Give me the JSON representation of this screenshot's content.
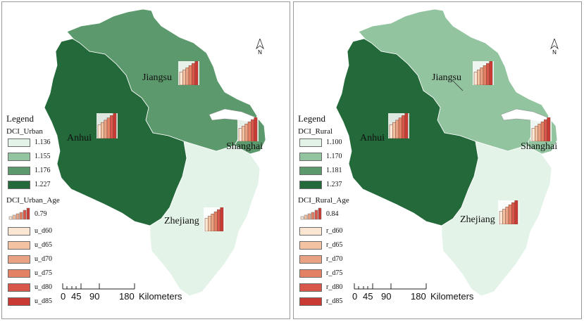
{
  "colors": {
    "class1": "#e3f3e8",
    "class2": "#92c4a0",
    "class3": "#5c9a6d",
    "class4": "#23693a",
    "water": "#ffffff",
    "ramp": [
      "#fbe5d3",
      "#f3c2a2",
      "#eaa284",
      "#e38165",
      "#d9574a",
      "#c93a34"
    ]
  },
  "panels": [
    {
      "id": "urban",
      "legend_title": "Legend",
      "dci_header": "DCI_Urban",
      "dci_classes": [
        "1.136",
        "1.155",
        "1.176",
        "1.227"
      ],
      "age_header": "DCI_Urban_Age",
      "age_symbol_value": "0.79",
      "age_classes": [
        "u_d60",
        "u_d65",
        "u_d70",
        "u_d75",
        "u_d80",
        "u_d85"
      ],
      "provinces": [
        {
          "name": "Anhui",
          "class": 4
        },
        {
          "name": "Jiangsu",
          "class": 3
        },
        {
          "name": "Shanghai",
          "class": 3
        },
        {
          "name": "Zhejiang",
          "class": 1
        }
      ],
      "north": "N",
      "scale": {
        "ticks": [
          "0",
          "45",
          "90",
          "180"
        ],
        "unit": "Kilometers"
      }
    },
    {
      "id": "rural",
      "legend_title": "Legend",
      "dci_header": "DCI_Rural",
      "dci_classes": [
        "1.100",
        "1.170",
        "1.181",
        "1.237"
      ],
      "age_header": "DCI_Rural_Age",
      "age_symbol_value": "0.84",
      "age_classes": [
        "r_d60",
        "r_d65",
        "r_d70",
        "r_d75",
        "r_d80",
        "r_d85"
      ],
      "provinces": [
        {
          "name": "Anhui",
          "class": 4
        },
        {
          "name": "Jiangsu",
          "class": 2
        },
        {
          "name": "Shanghai",
          "class": 2
        },
        {
          "name": "Zhejiang",
          "class": 1
        }
      ],
      "north": "N",
      "scale": {
        "ticks": [
          "0",
          "45",
          "90",
          "180"
        ],
        "unit": "Kilometers"
      }
    }
  ]
}
